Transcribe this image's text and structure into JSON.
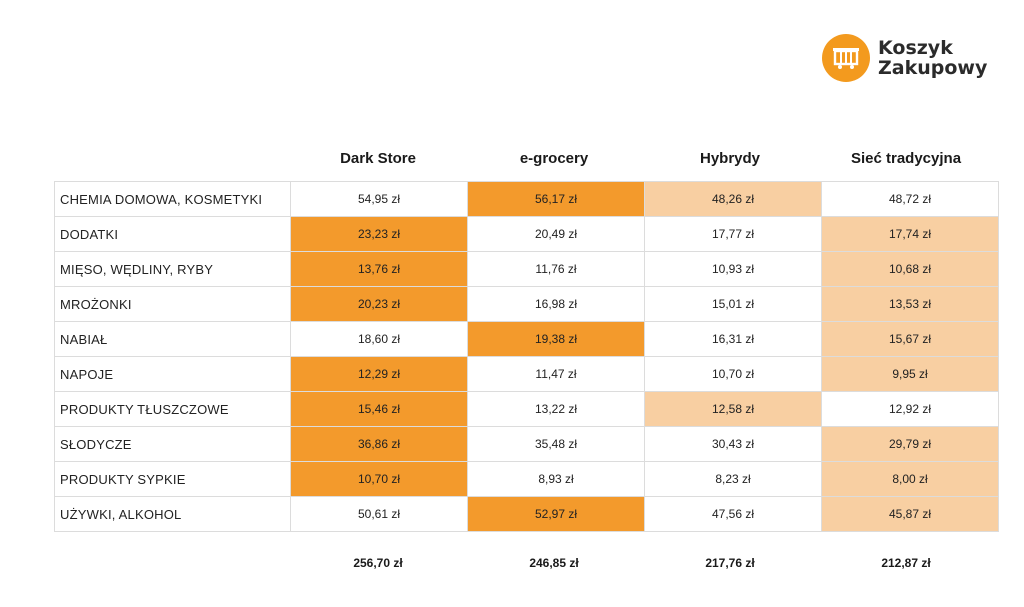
{
  "logo": {
    "line1": "Koszyk",
    "line2": "Zakupowy",
    "icon": "shopping-basket-icon"
  },
  "columns": [
    "Dark Store",
    "e-grocery",
    "Hybrydy",
    "Sieć tradycyjna"
  ],
  "colors": {
    "strong": "#f39a2c",
    "light": "#f8cfa2"
  },
  "rows": [
    {
      "label": "CHEMIA DOMOWA, KOSMETYKI",
      "values": [
        "54,95 zł",
        "56,17 zł",
        "48,26 zł",
        "48,72 zł"
      ],
      "highlight": [
        "",
        "strong",
        "light",
        ""
      ]
    },
    {
      "label": "DODATKI",
      "values": [
        "23,23 zł",
        "20,49 zł",
        "17,77 zł",
        "17,74 zł"
      ],
      "highlight": [
        "strong",
        "",
        "",
        "light"
      ]
    },
    {
      "label": "MIĘSO, WĘDLINY, RYBY",
      "values": [
        "13,76 zł",
        "11,76 zł",
        "10,93 zł",
        "10,68 zł"
      ],
      "highlight": [
        "strong",
        "",
        "",
        "light"
      ]
    },
    {
      "label": "MROŻONKI",
      "values": [
        "20,23 zł",
        "16,98 zł",
        "15,01 zł",
        "13,53 zł"
      ],
      "highlight": [
        "strong",
        "",
        "",
        "light"
      ]
    },
    {
      "label": "NABIAŁ",
      "values": [
        "18,60 zł",
        "19,38 zł",
        "16,31 zł",
        "15,67 zł"
      ],
      "highlight": [
        "",
        "strong",
        "",
        "light"
      ]
    },
    {
      "label": "NAPOJE",
      "values": [
        "12,29 zł",
        "11,47 zł",
        "10,70 zł",
        "9,95 zł"
      ],
      "highlight": [
        "strong",
        "",
        "",
        "light"
      ]
    },
    {
      "label": "PRODUKTY TŁUSZCZOWE",
      "values": [
        "15,46 zł",
        "13,22 zł",
        "12,58 zł",
        "12,92 zł"
      ],
      "highlight": [
        "strong",
        "",
        "light",
        ""
      ]
    },
    {
      "label": "SŁODYCZE",
      "values": [
        "36,86 zł",
        "35,48 zł",
        "30,43 zł",
        "29,79 zł"
      ],
      "highlight": [
        "strong",
        "",
        "",
        "light"
      ]
    },
    {
      "label": "PRODUKTY SYPKIE",
      "values": [
        "10,70 zł",
        "8,93 zł",
        "8,23 zł",
        "8,00 zł"
      ],
      "highlight": [
        "strong",
        "",
        "",
        "light"
      ]
    },
    {
      "label": "UŻYWKI, ALKOHOL",
      "values": [
        "50,61 zł",
        "52,97 zł",
        "47,56 zł",
        "45,87 zł"
      ],
      "highlight": [
        "",
        "strong",
        "",
        "light"
      ]
    }
  ],
  "totals": [
    "256,70 zł",
    "246,85 zł",
    "217,76 zł",
    "212,87 zł"
  ]
}
